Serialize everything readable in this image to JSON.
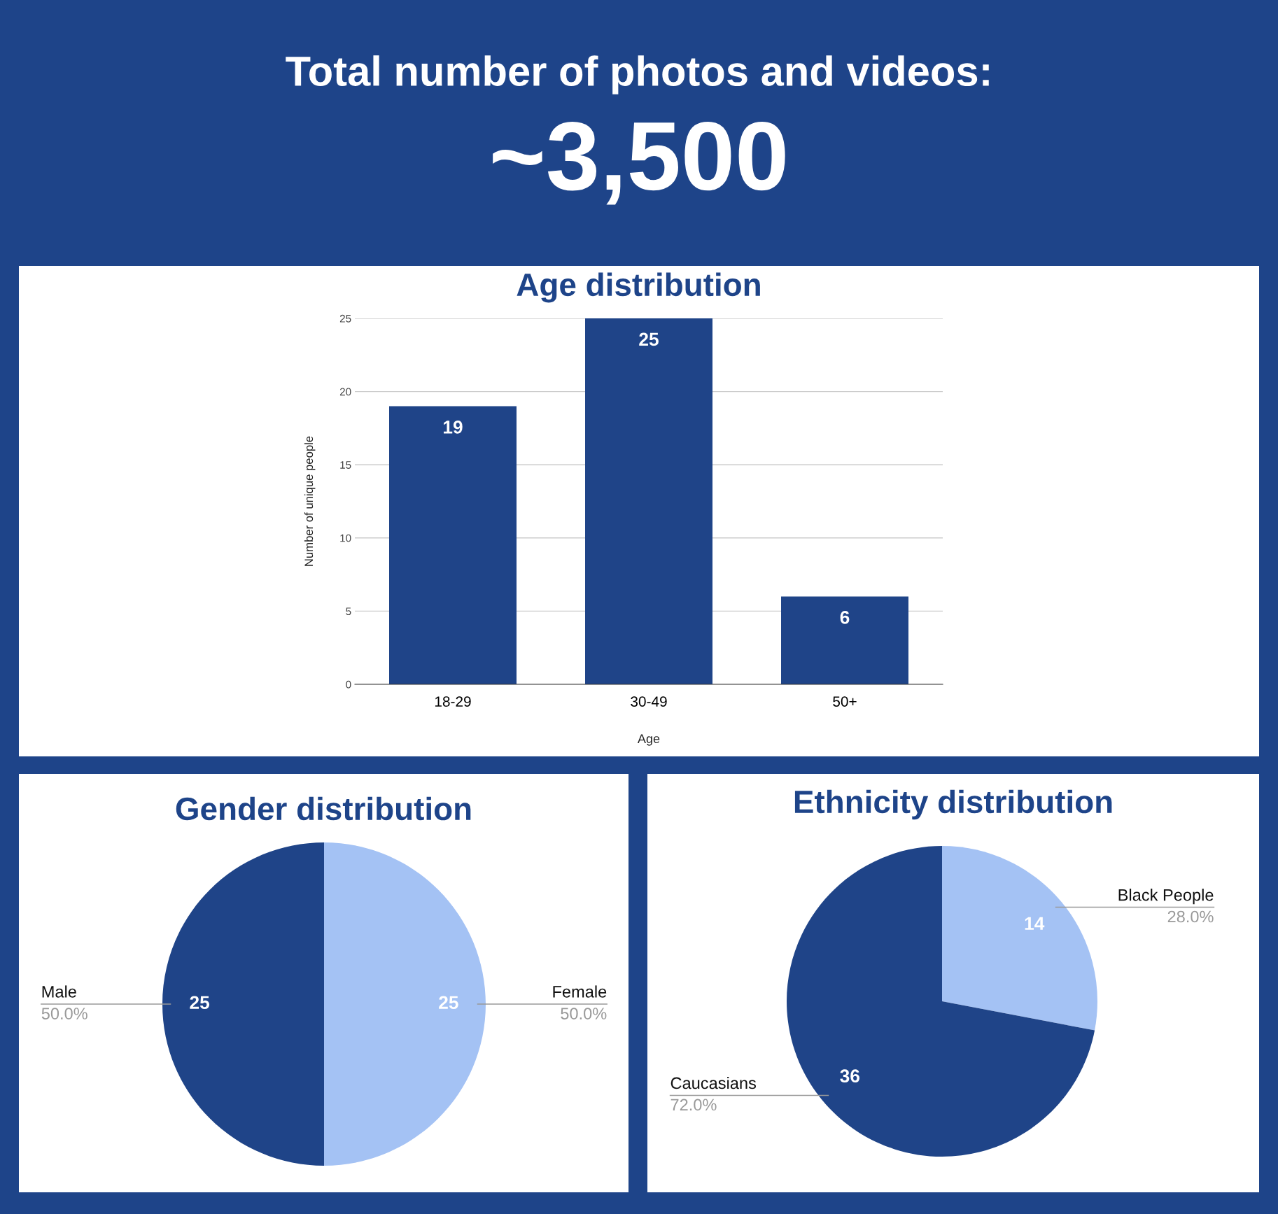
{
  "chart_data": [
    {
      "type": "other",
      "title": "Total number of photos and videos:",
      "annotations": [
        "~3,500"
      ]
    },
    {
      "type": "bar",
      "title": "Age distribution",
      "xlabel": "Age",
      "ylabel": "Number of unique people",
      "categories": [
        "18-29",
        "30-49",
        "50+"
      ],
      "values": [
        19,
        25,
        6
      ],
      "color": "#1f4488",
      "ylim": [
        0,
        25
      ],
      "yticks": [
        0,
        5,
        10,
        15,
        20,
        25
      ],
      "grid": "y",
      "data_labels": true
    },
    {
      "type": "pie",
      "title": "Gender distribution",
      "categories": [
        "Female",
        "Male"
      ],
      "values": [
        25,
        25
      ],
      "colors": [
        "#a4c2f4",
        "#1f4488"
      ],
      "data_labels": true,
      "annotations": [
        "50.0%",
        "50.0%"
      ]
    },
    {
      "type": "pie",
      "title": "Ethnicity distribution",
      "categories": [
        "Black People",
        "Caucasians"
      ],
      "values": [
        14,
        36
      ],
      "colors": [
        "#a4c2f4",
        "#1f4488"
      ],
      "data_labels": true,
      "annotations": [
        "28.0%",
        "72.0%"
      ]
    }
  ]
}
